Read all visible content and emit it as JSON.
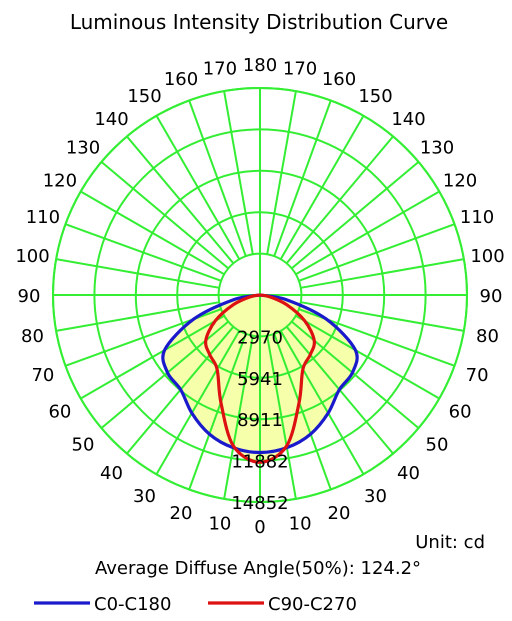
{
  "chart_data": {
    "type": "polar",
    "title": "Luminous Intensity Distribution Curve",
    "unit_text": "Unit: cd",
    "beam_text": "Average Diffuse Angle(50%): 124.2°",
    "angle_labels": [
      "0",
      "10",
      "20",
      "30",
      "40",
      "50",
      "60",
      "70",
      "80",
      "90",
      "100",
      "110",
      "120",
      "130",
      "140",
      "150",
      "160",
      "170",
      "180"
    ],
    "rings": [
      "2970",
      "5941",
      "8911",
      "11882",
      "14852"
    ],
    "grid_color": "#33ee33",
    "fill_color": "#f6ffaa",
    "grid": true,
    "legend_position": "bottom",
    "series": [
      {
        "name": "C0-C180",
        "color": "#1a1acc",
        "angles_deg": [
          0,
          10,
          20,
          30,
          40,
          50,
          60,
          70,
          80,
          90
        ],
        "intensities": [
          11300,
          11120,
          10620,
          9780,
          8860,
          8660,
          7900,
          5060,
          1900,
          0
        ]
      },
      {
        "name": "C90-C270",
        "color": "#dd1111",
        "angles_deg": [
          0,
          10,
          20,
          30,
          40,
          50,
          60,
          70,
          80,
          90
        ],
        "intensities": [
          12000,
          11000,
          8200,
          6150,
          5600,
          5080,
          3700,
          2020,
          690,
          0
        ]
      }
    ]
  }
}
